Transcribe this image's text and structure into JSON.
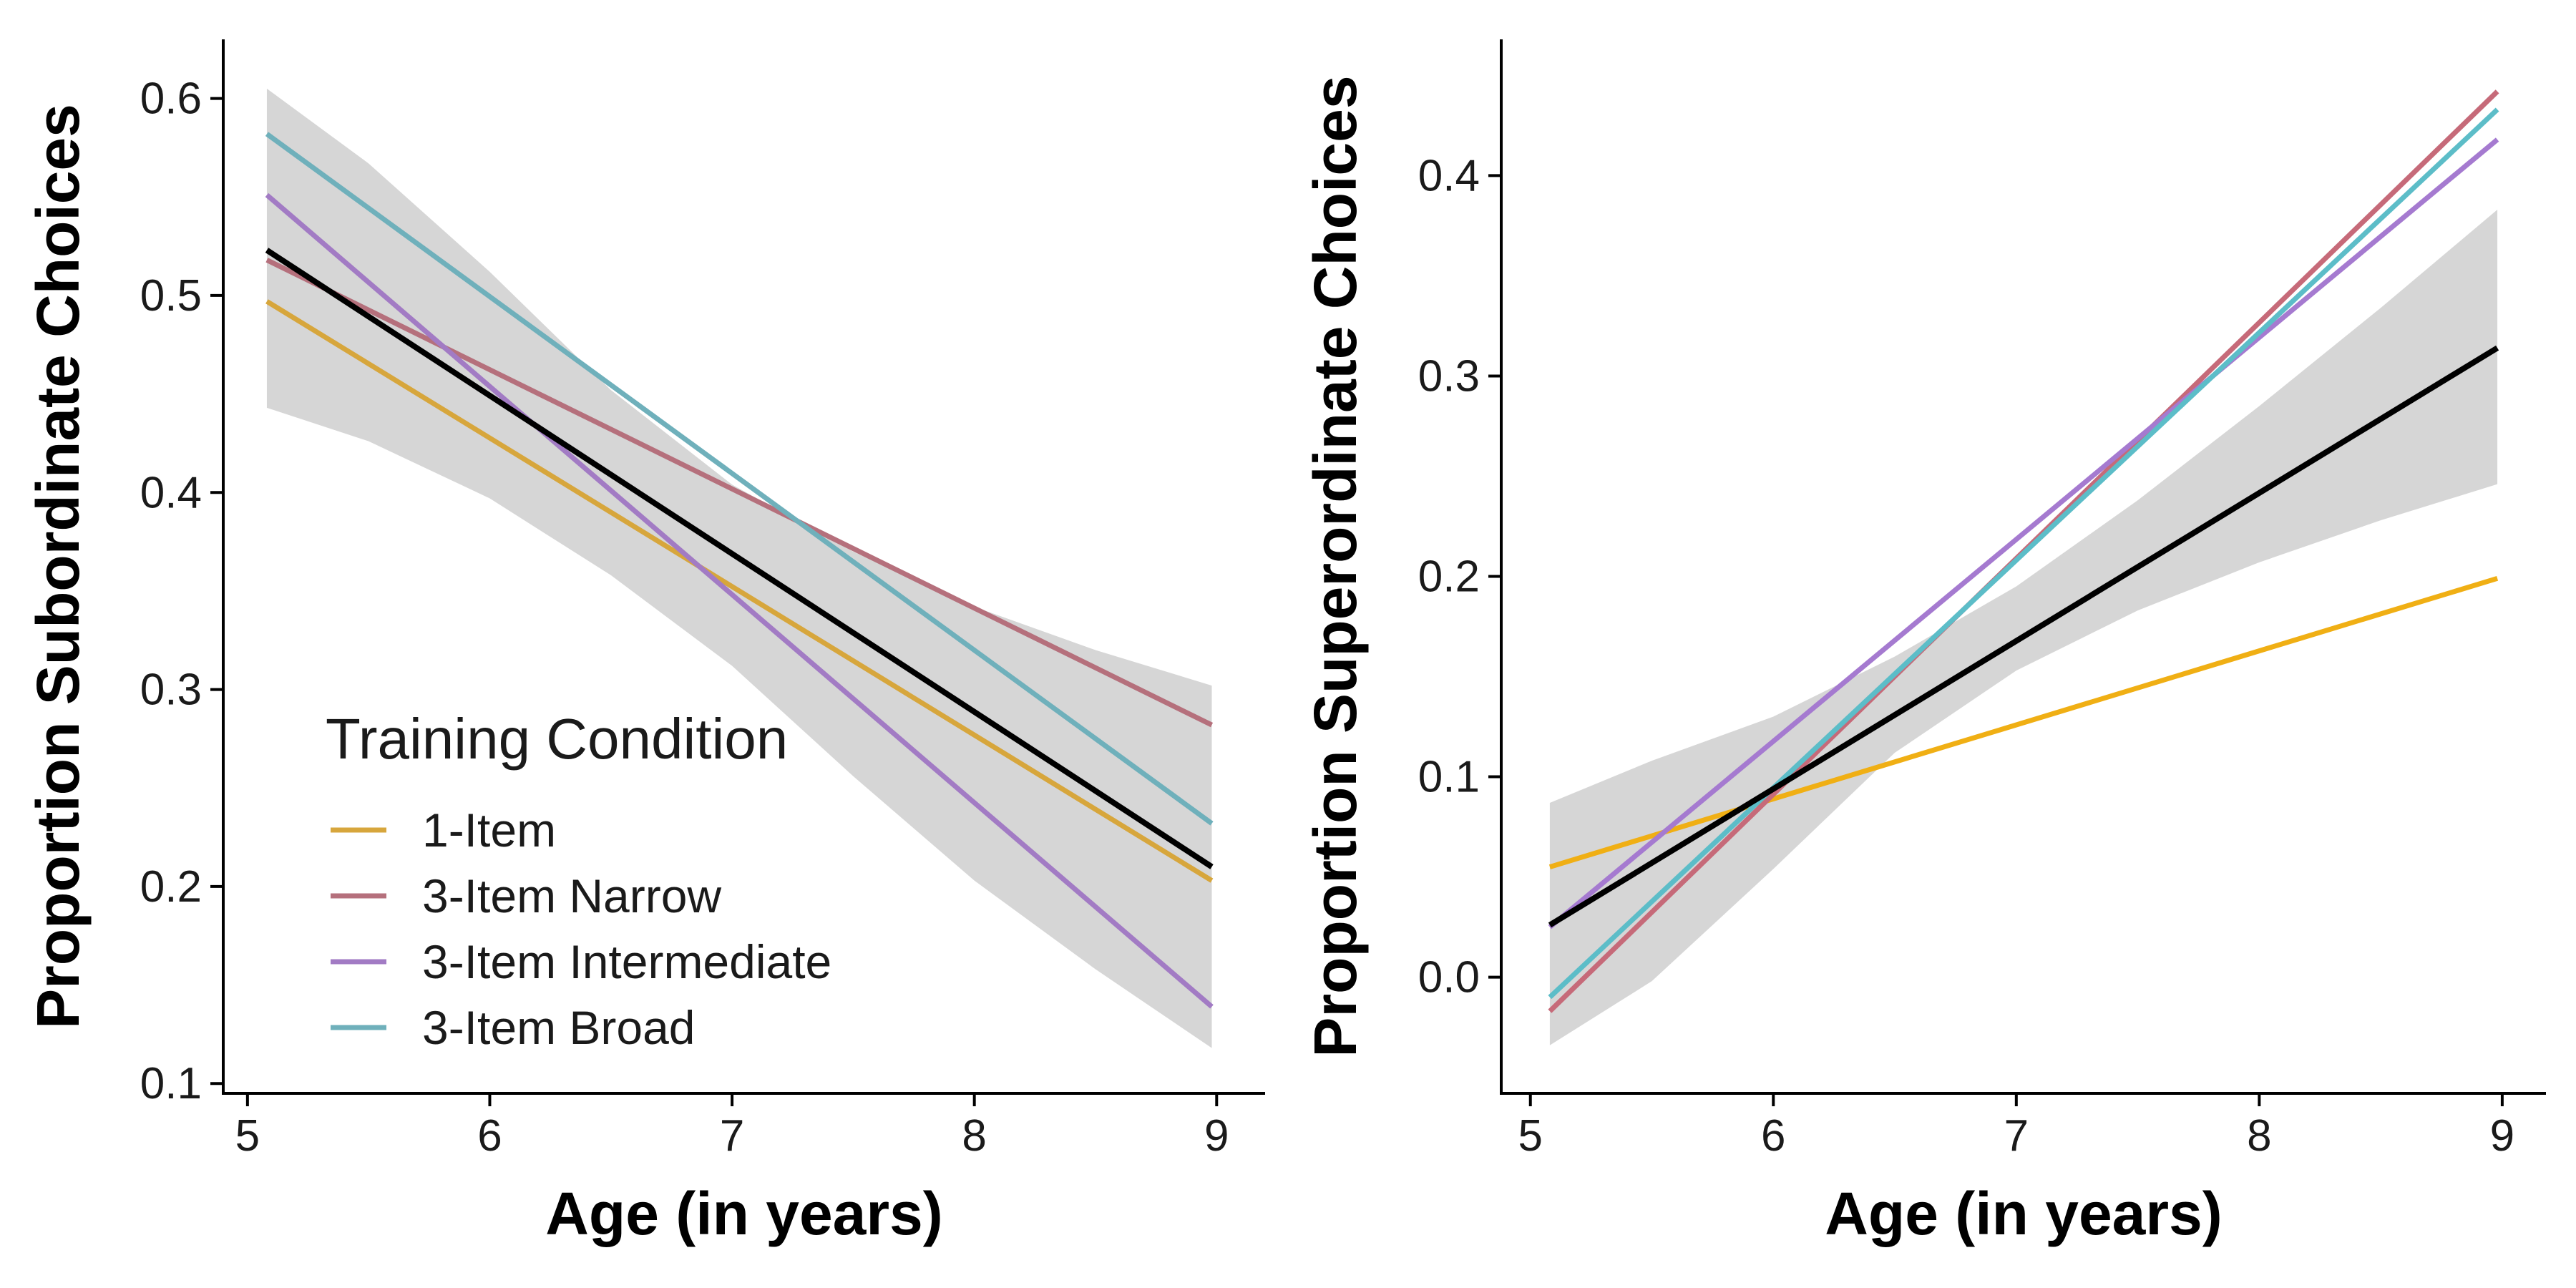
{
  "chart_data": [
    {
      "type": "line",
      "xlabel": "Age (in years)",
      "ylabel": "Proportion Subordinate Choices",
      "xlim": [
        4.9,
        9.2
      ],
      "ylim": [
        0.095,
        0.63
      ],
      "x_ticks": [
        "5",
        "6",
        "7",
        "8",
        "9"
      ],
      "y_ticks": [
        "0.1",
        "0.2",
        "0.3",
        "0.4",
        "0.5",
        "0.6"
      ],
      "grid": false,
      "legend": {
        "title": "Training Condition",
        "placement": "bottom-left",
        "items": [
          "1-Item",
          "3-Item Narrow",
          "3-Item Intermediate",
          "3-Item Broad"
        ]
      },
      "series": [
        {
          "name": "1-Item",
          "color": "#D7A63C",
          "x": [
            5.08,
            8.98
          ],
          "y": [
            0.497,
            0.203
          ]
        },
        {
          "name": "3-Item Narrow",
          "color": "#B5707C",
          "x": [
            5.08,
            8.98
          ],
          "y": [
            0.518,
            0.282
          ]
        },
        {
          "name": "3-Item Intermediate",
          "color": "#A27BC4",
          "x": [
            5.08,
            8.98
          ],
          "y": [
            0.551,
            0.139
          ]
        },
        {
          "name": "3-Item Broad",
          "color": "#6FB0BB",
          "x": [
            5.08,
            8.98
          ],
          "y": [
            0.582,
            0.232
          ]
        }
      ],
      "overall": {
        "color": "#000000",
        "x": [
          5.08,
          8.98
        ],
        "y": [
          0.523,
          0.21
        ]
      },
      "confidence_band": {
        "color": "#D6D6D6",
        "x": [
          5.08,
          5.5,
          6.0,
          6.5,
          7.0,
          7.5,
          8.0,
          8.5,
          8.98
        ],
        "upper": [
          0.605,
          0.567,
          0.512,
          0.452,
          0.404,
          0.37,
          0.342,
          0.32,
          0.302
        ],
        "lower": [
          0.443,
          0.426,
          0.397,
          0.358,
          0.312,
          0.256,
          0.203,
          0.158,
          0.118
        ]
      }
    },
    {
      "type": "line",
      "xlabel": "Age (in years)",
      "ylabel": "Proportion Superordinate Choices",
      "xlim": [
        4.88,
        9.18
      ],
      "ylim": [
        -0.058,
        0.468
      ],
      "x_ticks": [
        "5",
        "6",
        "7",
        "8",
        "9"
      ],
      "y_ticks": [
        "0.0",
        "0.1",
        "0.2",
        "0.3",
        "0.4"
      ],
      "grid": false,
      "series": [
        {
          "name": "1-Item",
          "color": "#F0AF14",
          "x": [
            5.08,
            8.98
          ],
          "y": [
            0.055,
            0.199
          ]
        },
        {
          "name": "3-Item Narrow",
          "color": "#C66A79",
          "x": [
            5.08,
            8.98
          ],
          "y": [
            -0.017,
            0.442
          ]
        },
        {
          "name": "3-Item Intermediate",
          "color": "#A57AD0",
          "x": [
            5.08,
            8.98
          ],
          "y": [
            0.025,
            0.418
          ]
        },
        {
          "name": "3-Item Broad",
          "color": "#5CBDC8",
          "x": [
            5.08,
            8.98
          ],
          "y": [
            -0.01,
            0.433
          ]
        }
      ],
      "overall": {
        "color": "#000000",
        "x": [
          5.08,
          8.98
        ],
        "y": [
          0.026,
          0.314
        ]
      },
      "confidence_band": {
        "color": "#D6D6D6",
        "x": [
          5.08,
          5.5,
          6.0,
          6.5,
          7.0,
          7.5,
          8.0,
          8.5,
          8.98
        ],
        "upper": [
          0.087,
          0.108,
          0.13,
          0.16,
          0.195,
          0.238,
          0.285,
          0.334,
          0.383
        ],
        "lower": [
          -0.034,
          -0.002,
          0.054,
          0.112,
          0.153,
          0.183,
          0.207,
          0.228,
          0.246
        ]
      }
    }
  ]
}
